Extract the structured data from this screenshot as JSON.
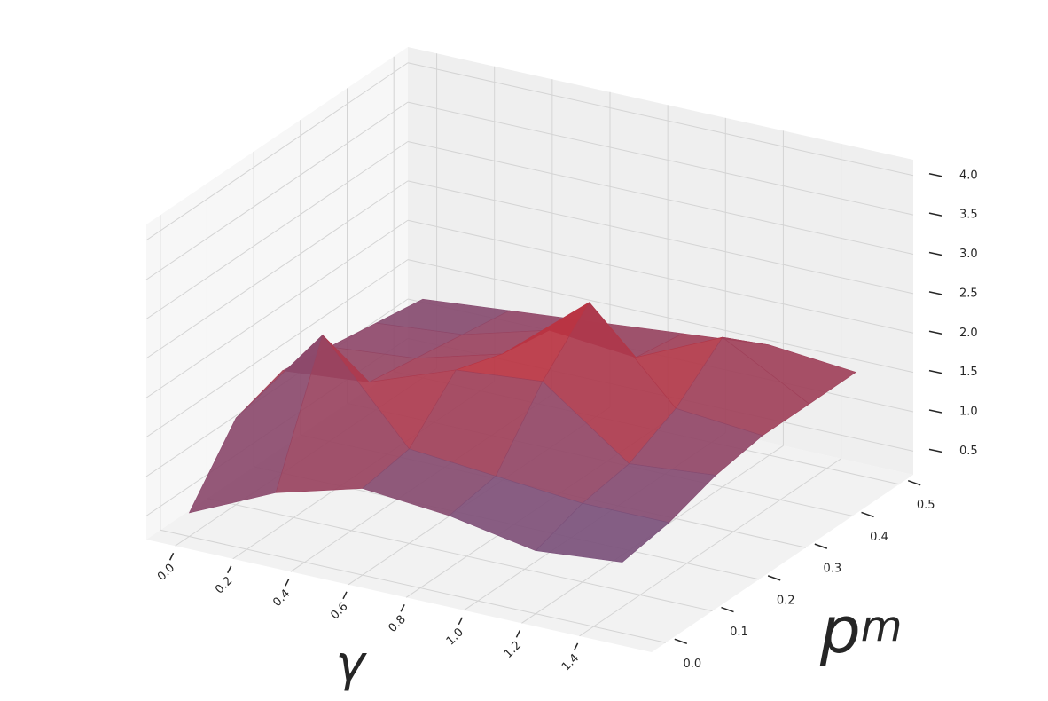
{
  "chart_data": {
    "type": "surface",
    "xlabel": "γ",
    "ylabel": {
      "base": "p",
      "sub": "m"
    },
    "x": [
      0,
      0.3,
      0.6,
      0.9,
      1.2,
      1.5
    ],
    "y": [
      0,
      0.1,
      0.2,
      0.3,
      0.4,
      0.5
    ],
    "z": [
      [
        0.5,
        1.0,
        1.3,
        1.2,
        1.0,
        1.1
      ],
      [
        1.3,
        2.6,
        1.4,
        1.3,
        1.2,
        1.2
      ],
      [
        1.5,
        1.6,
        2.0,
        2.1,
        1.3,
        1.4
      ],
      [
        1.4,
        1.5,
        1.8,
        2.7,
        1.6,
        1.5
      ],
      [
        1.3,
        1.4,
        1.7,
        1.6,
        2.1,
        1.5
      ],
      [
        1.2,
        1.3,
        1.4,
        1.5,
        1.6,
        1.5
      ]
    ],
    "cmap": [
      "#3b6fb6",
      "#d62728"
    ],
    "xlim": [
      -0.1,
      1.65
    ],
    "ylim": [
      -0.03,
      0.53
    ],
    "zlim": [
      0.2,
      4.2
    ],
    "xticks": [
      {
        "value": 0,
        "label": "0.0"
      },
      0.2,
      0.4,
      0.6,
      0.8,
      {
        "value": 1,
        "label": "1.0"
      },
      1.2,
      1.4
    ],
    "yticks": [
      {
        "value": 0,
        "label": "0.0"
      },
      0.1,
      0.2,
      0.3,
      0.4,
      0.5
    ],
    "zticks": [
      0.5,
      {
        "value": 1,
        "label": "1.0"
      },
      1.5,
      {
        "value": 2,
        "label": "2.0"
      },
      2.5,
      {
        "value": 3,
        "label": "3.0"
      },
      3.5,
      {
        "value": 4,
        "label": "4.0"
      }
    ],
    "grid": true
  }
}
